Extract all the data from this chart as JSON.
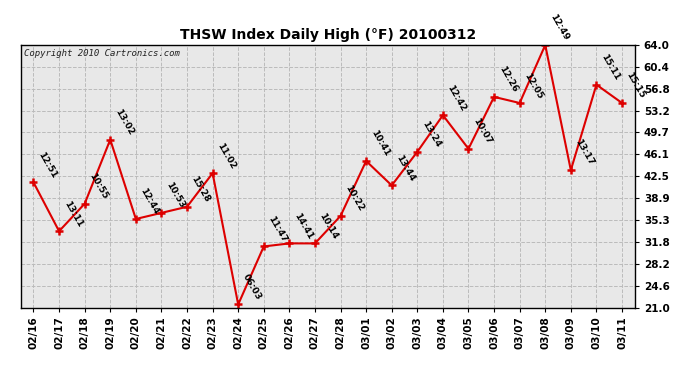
{
  "title": "THSW Index Daily High (°F) 20100312",
  "copyright": "Copyright 2010 Cartronics.com",
  "background_color": "#ffffff",
  "plot_background": "#e8e8e8",
  "grid_color": "#bbbbbb",
  "line_color": "#dd0000",
  "marker_color": "#dd0000",
  "dates": [
    "02/16",
    "02/17",
    "02/18",
    "02/19",
    "02/20",
    "02/21",
    "02/22",
    "02/23",
    "02/24",
    "02/25",
    "02/26",
    "02/27",
    "02/28",
    "03/01",
    "03/02",
    "03/03",
    "03/04",
    "03/05",
    "03/06",
    "03/07",
    "03/08",
    "03/09",
    "03/10",
    "03/11"
  ],
  "values": [
    41.5,
    33.5,
    38.0,
    48.5,
    35.5,
    36.5,
    37.5,
    43.0,
    21.5,
    31.0,
    31.5,
    31.5,
    36.0,
    45.0,
    41.0,
    46.5,
    52.5,
    47.0,
    55.5,
    54.5,
    64.0,
    43.5,
    57.5,
    54.5
  ],
  "labels": [
    "12:51",
    "13:11",
    "10:55",
    "13:02",
    "12:44",
    "10:53",
    "15:28",
    "11:02",
    "06:03",
    "11:47",
    "14:41",
    "10:14",
    "10:22",
    "10:41",
    "13:44",
    "13:24",
    "12:42",
    "10:07",
    "12:26",
    "12:05",
    "12:49",
    "13:17",
    "15:11",
    "15:15"
  ],
  "ylim": [
    21.0,
    64.0
  ],
  "yticks": [
    21.0,
    24.6,
    28.2,
    31.8,
    35.3,
    38.9,
    42.5,
    46.1,
    49.7,
    53.2,
    56.8,
    60.4,
    64.0
  ],
  "label_fontsize": 6.5,
  "tick_fontsize": 7.5,
  "title_fontsize": 10
}
